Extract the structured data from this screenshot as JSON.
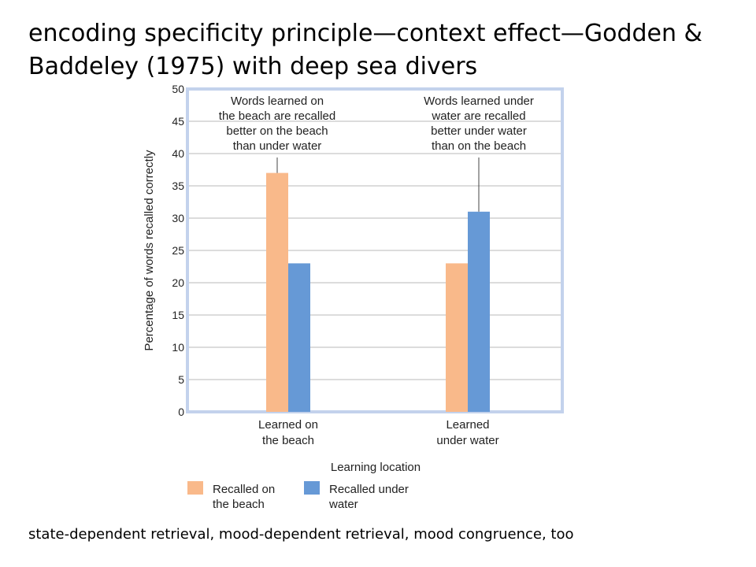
{
  "slide": {
    "title": "encoding specificity principle—context effect—Godden & Baddeley (1975) with deep sea divers",
    "footer": "state-dependent retrieval, mood-dependent retrieval, mood congruence, too"
  },
  "chart_data": {
    "type": "bar",
    "categories": [
      [
        "Learned on",
        "the beach"
      ],
      [
        "Learned",
        "under water"
      ]
    ],
    "series": [
      {
        "name": [
          "Recalled on",
          "the beach"
        ],
        "color": "#f9b98a",
        "values": [
          37,
          23
        ]
      },
      {
        "name": [
          "Recalled under",
          "water"
        ],
        "color": "#6699d6",
        "values": [
          23,
          31
        ]
      }
    ],
    "title": "",
    "xlabel": "Learning location",
    "ylabel": "Percentage of words recalled correctly",
    "ylim": [
      0,
      50
    ],
    "yticks": [
      "0",
      "5",
      "10",
      "15",
      "20",
      "25",
      "30",
      "35",
      "40",
      "45",
      "50"
    ],
    "grid": true,
    "plot_border_color": "#c3d2ec",
    "legend_position": "bottom-left",
    "annotations": [
      {
        "category_index": 0,
        "series_index": 0,
        "lines": [
          "Words learned on",
          "the beach are recalled",
          "better on the beach",
          "than under water"
        ]
      },
      {
        "category_index": 1,
        "series_index": 1,
        "lines": [
          "Words learned under",
          "water are recalled",
          "better under water",
          "than on the beach"
        ]
      }
    ]
  }
}
